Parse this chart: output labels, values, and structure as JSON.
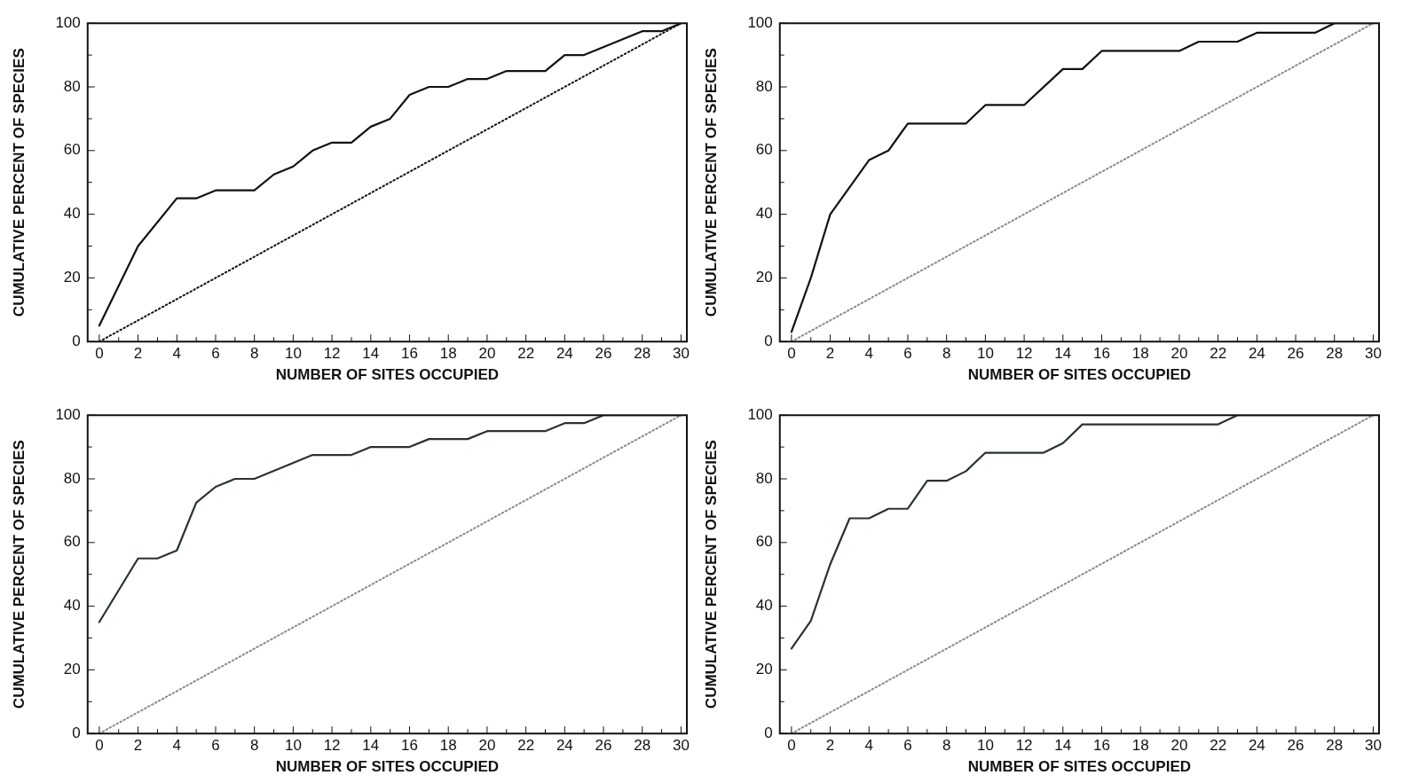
{
  "chart_data": [
    {
      "type": "line",
      "xlabel": "NUMBER OF SITES OCCUPIED",
      "ylabel": "CUMULATIVE PERCENT OF SPECIES",
      "xlim": [
        -0.6,
        30.3
      ],
      "ylim": [
        0,
        100
      ],
      "xticks": [
        0,
        {
          "value": 1,
          "label": null
        },
        2,
        {
          "value": 3,
          "label": null
        },
        4,
        {
          "value": 5,
          "label": null
        },
        6,
        {
          "value": 7,
          "label": null
        },
        8,
        {
          "value": 9,
          "label": null
        },
        10,
        {
          "value": 11,
          "label": null
        },
        12,
        {
          "value": 13,
          "label": null
        },
        14,
        {
          "value": 15,
          "label": null
        },
        16,
        {
          "value": 17,
          "label": null
        },
        18,
        {
          "value": 19,
          "label": null
        },
        20,
        {
          "value": 21,
          "label": null
        },
        22,
        {
          "value": 23,
          "label": null
        },
        24,
        {
          "value": 25,
          "label": null
        },
        26,
        {
          "value": 27,
          "label": null
        },
        28,
        {
          "value": 29,
          "label": null
        },
        30
      ],
      "yticks": [
        0,
        {
          "value": 10,
          "label": null
        },
        20,
        {
          "value": 30,
          "label": null
        },
        40,
        {
          "value": 50,
          "label": null
        },
        60,
        {
          "value": 70,
          "label": null
        },
        80,
        {
          "value": 90,
          "label": null
        },
        100
      ],
      "grid": false,
      "legend": false,
      "marker": "none",
      "series": [
        {
          "color": "#111111",
          "line_style": "solid",
          "x": [
            0,
            2,
            4,
            5,
            6,
            8,
            9,
            10,
            11,
            12,
            13,
            14,
            15,
            16,
            17,
            18,
            19,
            20,
            21,
            23,
            24,
            25,
            28,
            29,
            30
          ],
          "values": [
            5,
            30,
            45,
            45,
            47.5,
            47.5,
            52.5,
            55,
            60,
            62.5,
            62.5,
            67.5,
            70,
            77.5,
            80,
            80,
            82.5,
            82.5,
            85,
            85,
            90,
            90,
            97.5,
            97.5,
            100
          ]
        },
        {
          "color": "#111111",
          "line_style": "dotted",
          "x": [
            0,
            30
          ],
          "values": [
            0,
            100
          ]
        }
      ]
    },
    {
      "type": "line",
      "xlabel": "NUMBER OF SITES OCCUPIED",
      "ylabel": "CUMULATIVE PERCENT OF SPECIES",
      "xlim": [
        -0.6,
        30.3
      ],
      "ylim": [
        0,
        100
      ],
      "xticks": [
        0,
        {
          "value": 1,
          "label": null
        },
        2,
        {
          "value": 3,
          "label": null
        },
        4,
        {
          "value": 5,
          "label": null
        },
        6,
        {
          "value": 7,
          "label": null
        },
        8,
        {
          "value": 9,
          "label": null
        },
        10,
        {
          "value": 11,
          "label": null
        },
        12,
        {
          "value": 13,
          "label": null
        },
        14,
        {
          "value": 15,
          "label": null
        },
        16,
        {
          "value": 17,
          "label": null
        },
        18,
        {
          "value": 19,
          "label": null
        },
        20,
        {
          "value": 21,
          "label": null
        },
        22,
        {
          "value": 23,
          "label": null
        },
        24,
        {
          "value": 25,
          "label": null
        },
        26,
        {
          "value": 27,
          "label": null
        },
        28,
        {
          "value": 29,
          "label": null
        },
        30
      ],
      "yticks": [
        0,
        {
          "value": 10,
          "label": null
        },
        20,
        {
          "value": 30,
          "label": null
        },
        40,
        {
          "value": 50,
          "label": null
        },
        60,
        {
          "value": 70,
          "label": null
        },
        80,
        {
          "value": 90,
          "label": null
        },
        100
      ],
      "grid": false,
      "legend": false,
      "marker": "none",
      "series": [
        {
          "color": "#111111",
          "line_style": "solid",
          "x": [
            0,
            1,
            2,
            4,
            5,
            6,
            9,
            10,
            12,
            14,
            15,
            16,
            20,
            21,
            23,
            24,
            27,
            28,
            30
          ],
          "values": [
            3,
            20,
            40,
            57,
            60,
            68.5,
            68.5,
            74.3,
            74.3,
            85.6,
            85.6,
            91.3,
            91.3,
            94.2,
            94.2,
            97,
            97,
            100,
            100
          ]
        },
        {
          "color": "#888888",
          "line_style": "dotted",
          "x": [
            0,
            30
          ],
          "values": [
            0,
            100
          ]
        }
      ]
    },
    {
      "type": "line",
      "xlabel": "NUMBER OF SITES OCCUPIED",
      "ylabel": "CUMULATIVE PERCENT OF SPECIES",
      "xlim": [
        -0.6,
        30.3
      ],
      "ylim": [
        0,
        100
      ],
      "xticks": [
        0,
        {
          "value": 1,
          "label": null
        },
        2,
        {
          "value": 3,
          "label": null
        },
        4,
        {
          "value": 5,
          "label": null
        },
        6,
        {
          "value": 7,
          "label": null
        },
        8,
        {
          "value": 9,
          "label": null
        },
        10,
        {
          "value": 11,
          "label": null
        },
        12,
        {
          "value": 13,
          "label": null
        },
        14,
        {
          "value": 15,
          "label": null
        },
        16,
        {
          "value": 17,
          "label": null
        },
        18,
        {
          "value": 19,
          "label": null
        },
        20,
        {
          "value": 21,
          "label": null
        },
        22,
        {
          "value": 23,
          "label": null
        },
        24,
        {
          "value": 25,
          "label": null
        },
        26,
        {
          "value": 27,
          "label": null
        },
        28,
        {
          "value": 29,
          "label": null
        },
        30
      ],
      "yticks": [
        0,
        {
          "value": 10,
          "label": null
        },
        20,
        {
          "value": 30,
          "label": null
        },
        40,
        {
          "value": 50,
          "label": null
        },
        60,
        {
          "value": 70,
          "label": null
        },
        80,
        {
          "value": 90,
          "label": null
        },
        100
      ],
      "grid": false,
      "legend": false,
      "marker": "none",
      "series": [
        {
          "color": "#2a3233",
          "line_style": "solid",
          "x": [
            0,
            2,
            3,
            4,
            5,
            6,
            7,
            8,
            11,
            13,
            14,
            16,
            17,
            19,
            20,
            23,
            24,
            25,
            26,
            30
          ],
          "values": [
            35,
            55,
            55,
            57.5,
            72.5,
            77.5,
            80,
            80,
            87.5,
            87.5,
            90,
            90,
            92.5,
            92.5,
            95,
            95,
            97.5,
            97.5,
            100,
            100
          ]
        },
        {
          "color": "#888888",
          "line_style": "dotted",
          "x": [
            0,
            30
          ],
          "values": [
            0,
            100
          ]
        }
      ]
    },
    {
      "type": "line",
      "xlabel": "NUMBER OF SITES OCCUPIED",
      "ylabel": "CUMULATIVE PERCENT OF SPECIES",
      "xlim": [
        -0.6,
        30.3
      ],
      "ylim": [
        0,
        100
      ],
      "xticks": [
        0,
        {
          "value": 1,
          "label": null
        },
        2,
        {
          "value": 3,
          "label": null
        },
        4,
        {
          "value": 5,
          "label": null
        },
        6,
        {
          "value": 7,
          "label": null
        },
        8,
        {
          "value": 9,
          "label": null
        },
        10,
        {
          "value": 11,
          "label": null
        },
        12,
        {
          "value": 13,
          "label": null
        },
        14,
        {
          "value": 15,
          "label": null
        },
        16,
        {
          "value": 17,
          "label": null
        },
        18,
        {
          "value": 19,
          "label": null
        },
        20,
        {
          "value": 21,
          "label": null
        },
        22,
        {
          "value": 23,
          "label": null
        },
        24,
        {
          "value": 25,
          "label": null
        },
        26,
        {
          "value": 27,
          "label": null
        },
        28,
        {
          "value": 29,
          "label": null
        },
        30
      ],
      "yticks": [
        0,
        {
          "value": 10,
          "label": null
        },
        20,
        {
          "value": 30,
          "label": null
        },
        40,
        {
          "value": 50,
          "label": null
        },
        60,
        {
          "value": 70,
          "label": null
        },
        80,
        {
          "value": 90,
          "label": null
        },
        100
      ],
      "grid": false,
      "legend": false,
      "marker": "none",
      "series": [
        {
          "color": "#2a3233",
          "line_style": "solid",
          "x": [
            0,
            1,
            2,
            3,
            4,
            5,
            6,
            7,
            8,
            9,
            10,
            13,
            14,
            15,
            22,
            23,
            30
          ],
          "values": [
            26.7,
            35.4,
            53.2,
            67.6,
            67.6,
            70.6,
            70.6,
            79.4,
            79.4,
            82.4,
            88.2,
            88.2,
            91.2,
            97.1,
            97.1,
            100,
            100
          ]
        },
        {
          "color": "#888888",
          "line_style": "dotted",
          "x": [
            0,
            30
          ],
          "values": [
            0,
            100
          ]
        }
      ]
    }
  ]
}
